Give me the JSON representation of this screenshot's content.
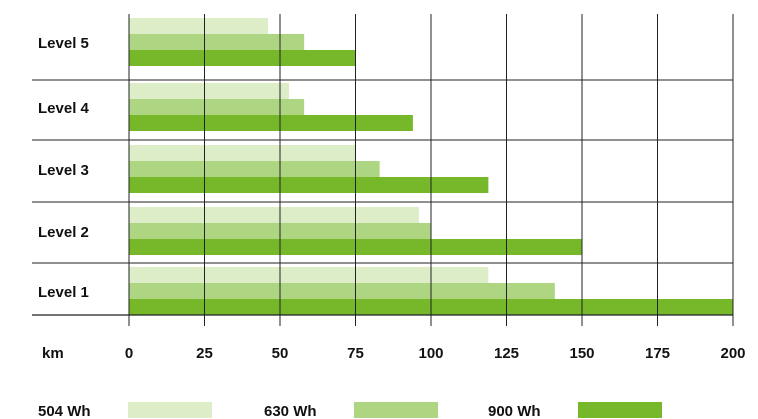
{
  "chart_data": {
    "type": "bar",
    "orientation": "horizontal",
    "categories": [
      "Level 5",
      "Level 4",
      "Level 3",
      "Level 2",
      "Level 1"
    ],
    "series": [
      {
        "name": "504 Wh",
        "color": "#dcedc8",
        "values": [
          46,
          53,
          75,
          96,
          119
        ]
      },
      {
        "name": "630 Wh",
        "color": "#aed581",
        "values": [
          58,
          58,
          83,
          100,
          141
        ]
      },
      {
        "name": "900 Wh",
        "color": "#76b82a",
        "values": [
          75,
          94,
          119,
          150,
          200
        ]
      }
    ],
    "x_unit_label": "km",
    "x_ticks": [
      0,
      25,
      50,
      75,
      100,
      125,
      150,
      175,
      200
    ],
    "xlim": [
      0,
      200
    ],
    "grid": "vertical",
    "legend_position": "bottom"
  }
}
